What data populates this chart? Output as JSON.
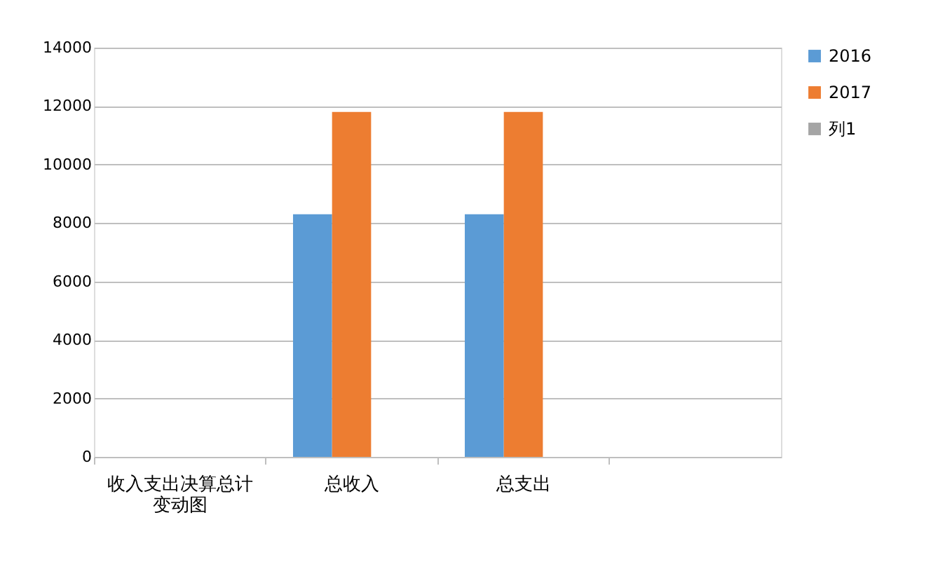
{
  "chart_data": {
    "type": "bar",
    "categories": [
      "收入支出决算总计变动图",
      "总收入",
      "总支出",
      null
    ],
    "series": [
      {
        "name": "2016",
        "color": "#5b9bd5",
        "values": [
          null,
          8300,
          8300,
          null
        ]
      },
      {
        "name": "2017",
        "color": "#ed7d31",
        "values": [
          null,
          11800,
          11800,
          null
        ]
      },
      {
        "name": "列1",
        "color": "#a5a5a5",
        "values": [
          null,
          null,
          null,
          null
        ]
      }
    ],
    "ylim": [
      0,
      14000
    ],
    "yticks": [
      0,
      2000,
      4000,
      6000,
      8000,
      10000,
      12000,
      14000
    ],
    "grid": "y",
    "legend": "right"
  }
}
